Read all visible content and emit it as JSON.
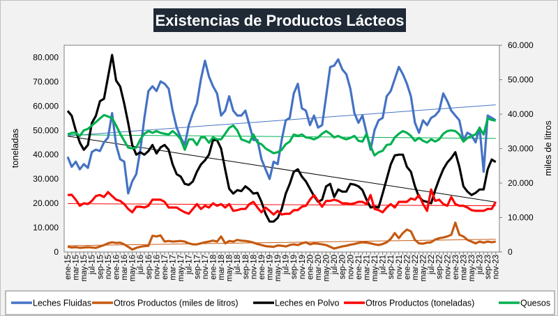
{
  "chart_data": {
    "type": "line",
    "title": "Existencias de Productos Lácteos",
    "ylabel": "toneladas",
    "y2label": "miles de litros",
    "ylim": [
      0,
      85000
    ],
    "y2lim": [
      0,
      60000
    ],
    "yticks": [
      "0",
      "10.000",
      "20.000",
      "30.000",
      "40.000",
      "50.000",
      "60.000",
      "70.000",
      "80.000"
    ],
    "y2ticks": [
      "0",
      "10.000",
      "20.000",
      "30.000",
      "40.000",
      "50.000",
      "60.000"
    ],
    "frequency": "monthly",
    "tick_labels": [
      "ene-15",
      "mar-15",
      "may-15",
      "jul-15",
      "sep-15",
      "nov-15",
      "ene-16",
      "mar-16",
      "may-16",
      "jul-16",
      "sep-16",
      "nov-16",
      "ene-17",
      "mar-17",
      "may-17",
      "jul-17",
      "sep-17",
      "nov-17",
      "ene-18",
      "mar-18",
      "may-18",
      "jul-18",
      "sep-18",
      "nov-18",
      "ene-19",
      "mar-19",
      "may-19",
      "jul-19",
      "sep-19",
      "nov-19",
      "ene-20",
      "mar-20",
      "may-20",
      "jul-20",
      "sep-20",
      "nov-20",
      "ene-21",
      "mar-21",
      "may-21",
      "jul-21",
      "sep-21",
      "nov-21",
      "ene-22",
      "mar-22",
      "may-22",
      "jul-22",
      "sep-22",
      "nov-22",
      "ene-23",
      "mar-23",
      "may-23",
      "jul-23",
      "sep-23",
      "nov-23"
    ],
    "grid": false,
    "trendlines": true,
    "legend_position": "bottom",
    "series": [
      {
        "name": "Leches Fluidas",
        "axis": "right",
        "color": "#4472c4",
        "values": [
          27600,
          24700,
          26200,
          24000,
          25500,
          24400,
          29000,
          29700,
          29300,
          31800,
          33200,
          40300,
          31100,
          26900,
          26200,
          17000,
          20500,
          22600,
          29700,
          38900,
          46700,
          48100,
          46700,
          49500,
          48800,
          47400,
          41000,
          36100,
          33200,
          31100,
          36800,
          40300,
          43100,
          50200,
          55500,
          50900,
          48100,
          46000,
          39600,
          41000,
          45200,
          41000,
          39600,
          39600,
          41000,
          36800,
          32500,
          32500,
          26900,
          24000,
          21200,
          26200,
          25500,
          32500,
          38200,
          38900,
          46000,
          48800,
          41700,
          41000,
          36800,
          39600,
          36100,
          36800,
          45200,
          53700,
          54100,
          55900,
          53000,
          51600,
          47400,
          40300,
          37500,
          39600,
          34600,
          29700,
          35400,
          38200,
          38900,
          45200,
          46700,
          50200,
          53700,
          51600,
          48800,
          45200,
          37500,
          34600,
          38200,
          36800,
          38900,
          39600,
          41000,
          46000,
          43800,
          41000,
          39600,
          38200,
          32500,
          34600,
          33900,
          31800,
          36100,
          23300,
          39600,
          38900,
          38200
        ]
      },
      {
        "name": "Otros Productos (miles de litros)",
        "axis": "right",
        "color": "#c55a11",
        "values": [
          1500,
          1300,
          1400,
          1200,
          1300,
          1400,
          1300,
          1200,
          1600,
          2000,
          2500,
          2800,
          2600,
          2700,
          2200,
          1500,
          700,
          1200,
          1500,
          1700,
          1800,
          4700,
          4500,
          4800,
          3000,
          3200,
          3000,
          3100,
          3200,
          3000,
          2500,
          2200,
          2200,
          2500,
          2800,
          3000,
          3300,
          3000,
          4500,
          2500,
          3200,
          3000,
          3500,
          3300,
          3200,
          3000,
          2700,
          2300,
          2000,
          1700,
          1600,
          1500,
          1900,
          1800,
          1600,
          2000,
          2200,
          2000,
          2500,
          2800,
          2200,
          2500,
          2400,
          2200,
          2000,
          1500,
          1000,
          1300,
          1600,
          1800,
          2100,
          2300,
          2600,
          2800,
          2700,
          2500,
          2200,
          2000,
          2300,
          2800,
          3800,
          5500,
          4000,
          5500,
          6500,
          6000,
          3500,
          2500,
          2400,
          2700,
          2800,
          3600,
          4000,
          4200,
          4500,
          5000,
          8500,
          5000,
          4500,
          3500,
          3000,
          2500,
          3000,
          2700,
          3000,
          2800,
          3000
        ]
      },
      {
        "name": "Leches en Polvo",
        "axis": "left",
        "color": "#000000",
        "values": [
          58000,
          56000,
          50000,
          45000,
          42000,
          44000,
          53000,
          56000,
          62000,
          63000,
          72000,
          81000,
          70500,
          68000,
          61000,
          53000,
          44000,
          40000,
          41000,
          40000,
          41500,
          44000,
          40500,
          43000,
          44000,
          42000,
          36000,
          32000,
          31000,
          28000,
          27600,
          29000,
          33000,
          36000,
          37700,
          40000,
          46000,
          46000,
          42500,
          34000,
          26000,
          24000,
          25400,
          25000,
          27000,
          25700,
          24000,
          24300,
          20600,
          15700,
          12500,
          12500,
          14000,
          17700,
          24000,
          28000,
          33000,
          34000,
          31000,
          29000,
          26000,
          23000,
          20600,
          21500,
          27000,
          28000,
          22600,
          25700,
          24800,
          24800,
          28000,
          27700,
          27000,
          25400,
          21500,
          18300,
          18600,
          18300,
          24000,
          30000,
          36000,
          39700,
          40000,
          40000,
          35000,
          33000,
          27000,
          22600,
          21000,
          20600,
          20000,
          25400,
          30000,
          34000,
          36800,
          38600,
          41000,
          35000,
          27000,
          24800,
          23400,
          24300,
          25700,
          25700,
          34000,
          38000,
          37000
        ]
      },
      {
        "name": "Otros Productos (toneladas)",
        "axis": "left",
        "color": "#ff0000",
        "values": [
          23400,
          23500,
          21500,
          19000,
          20000,
          19700,
          21000,
          23000,
          23400,
          22600,
          24600,
          23000,
          21500,
          21000,
          19700,
          17700,
          16300,
          18600,
          18600,
          18300,
          19000,
          21500,
          21500,
          21500,
          20600,
          18300,
          18300,
          18300,
          17200,
          16300,
          15700,
          17700,
          19700,
          17700,
          19000,
          18300,
          20000,
          19000,
          19700,
          18300,
          19700,
          16900,
          17200,
          17700,
          17700,
          19700,
          20600,
          18300,
          16300,
          18300,
          16900,
          15400,
          16900,
          15400,
          15700,
          15700,
          17200,
          17200,
          18600,
          19000,
          21500,
          23400,
          21000,
          18600,
          21000,
          21000,
          21500,
          21000,
          20000,
          20000,
          19700,
          20000,
          20600,
          20600,
          19700,
          23400,
          17700,
          17200,
          16300,
          18300,
          19700,
          18300,
          20600,
          20600,
          20600,
          22000,
          21500,
          23400,
          19700,
          16900,
          25700,
          21000,
          21500,
          19700,
          19000,
          22600,
          19700,
          19000,
          19000,
          18300,
          17200,
          16900,
          16900,
          16900,
          17700,
          17700,
          20600
        ]
      },
      {
        "name": "Quesos",
        "axis": "left",
        "color": "#00b050",
        "values": [
          48300,
          49000,
          49000,
          47700,
          50000,
          50600,
          52000,
          53400,
          54900,
          56300,
          55700,
          55000,
          52000,
          48600,
          45700,
          42900,
          42600,
          42900,
          46300,
          48600,
          49700,
          49000,
          49700,
          49000,
          48600,
          48300,
          49700,
          48300,
          46300,
          42000,
          46300,
          46300,
          44000,
          47100,
          47100,
          44900,
          47100,
          46300,
          46300,
          48600,
          51000,
          52000,
          50000,
          46300,
          45700,
          45000,
          48300,
          45000,
          44300,
          42600,
          41600,
          40600,
          41000,
          42000,
          44300,
          45400,
          48300,
          47700,
          48300,
          47100,
          46900,
          46300,
          47100,
          48600,
          49700,
          48600,
          47100,
          47700,
          46900,
          46300,
          46900,
          47700,
          45700,
          45400,
          48600,
          43400,
          39700,
          41000,
          41600,
          44000,
          44300,
          47100,
          48600,
          49700,
          49000,
          47700,
          45700,
          46900,
          45700,
          45000,
          46300,
          45400,
          46300,
          48600,
          49700,
          50000,
          49700,
          48300,
          45400,
          46900,
          47700,
          48300,
          51000,
          48300,
          54900,
          54300,
          54000
        ]
      }
    ]
  }
}
